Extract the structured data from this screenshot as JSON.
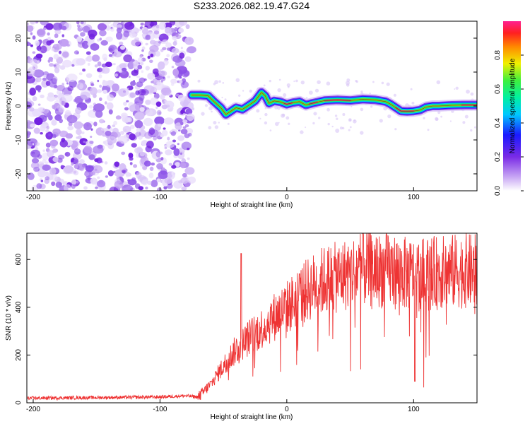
{
  "title": "S233.2026.082.19.47.G24",
  "chart_data": [
    {
      "type": "heatmap",
      "name": "spectrogram",
      "xlabel": "Height of straight line (km)",
      "ylabel": "Frequency (Hz)",
      "xlim": [
        -205,
        150
      ],
      "ylim": [
        -25,
        25
      ],
      "xticks": [
        -200,
        -100,
        0,
        100
      ],
      "yticks": [
        -20,
        -10,
        0,
        10,
        20
      ],
      "noise_region_x": [
        -205,
        -75
      ],
      "ridge": {
        "x": [
          -75,
          -68,
          -62,
          -58,
          -52,
          -48,
          -44,
          -40,
          -35,
          -30,
          -25,
          -20,
          -17,
          -14,
          -10,
          -5,
          0,
          5,
          10,
          15,
          20,
          25,
          30,
          40,
          50,
          60,
          70,
          78,
          82,
          86,
          90,
          95,
          100,
          105,
          110,
          115,
          120,
          130,
          140,
          150
        ],
        "y": [
          3.2,
          3.2,
          3.0,
          1.5,
          -0.5,
          -2.5,
          -1.5,
          -0.5,
          -1.0,
          0.2,
          1.5,
          4.0,
          3.0,
          0.8,
          1.5,
          1.2,
          0.5,
          1.0,
          1.3,
          0.3,
          0.8,
          1.2,
          1.6,
          1.8,
          1.6,
          2.0,
          1.8,
          1.3,
          0.5,
          -0.5,
          -1.5,
          -1.6,
          -1.5,
          -1.2,
          -0.3,
          0.0,
          0.0,
          0.2,
          0.3,
          0.3
        ]
      }
    },
    {
      "type": "colorbar",
      "label": "Normalized spectral amplitude",
      "range": [
        0,
        1
      ],
      "ticks": [
        "0.0",
        "0.2",
        "0.4",
        "0.6",
        "0.8"
      ]
    },
    {
      "type": "line",
      "name": "snr",
      "xlabel": "Height of straight line (km)",
      "ylabel": "SNR (10 * v/v)",
      "xlim": [
        -205,
        150
      ],
      "ylim": [
        0,
        710
      ],
      "xticks": [
        -200,
        -100,
        0,
        100
      ],
      "yticks": [
        0,
        200,
        400,
        600
      ],
      "color": "#ee3333",
      "envelope": {
        "x": [
          -205,
          -100,
          -80,
          -70,
          -60,
          -50,
          -40,
          -30,
          -20,
          -10,
          0,
          10,
          20,
          30,
          40,
          50,
          60,
          70,
          80,
          90,
          100,
          110,
          120,
          130,
          140,
          150
        ],
        "y": [
          20,
          25,
          30,
          25,
          80,
          160,
          230,
          280,
          320,
          370,
          410,
          460,
          500,
          530,
          540,
          560,
          580,
          570,
          570,
          560,
          550,
          555,
          560,
          565,
          570,
          565
        ]
      },
      "spikes": [
        {
          "x": -36,
          "y": 625
        },
        {
          "x": 60,
          "y": 710
        },
        {
          "x": 101,
          "y": 90
        },
        {
          "x": 10,
          "y": 540
        }
      ]
    }
  ]
}
